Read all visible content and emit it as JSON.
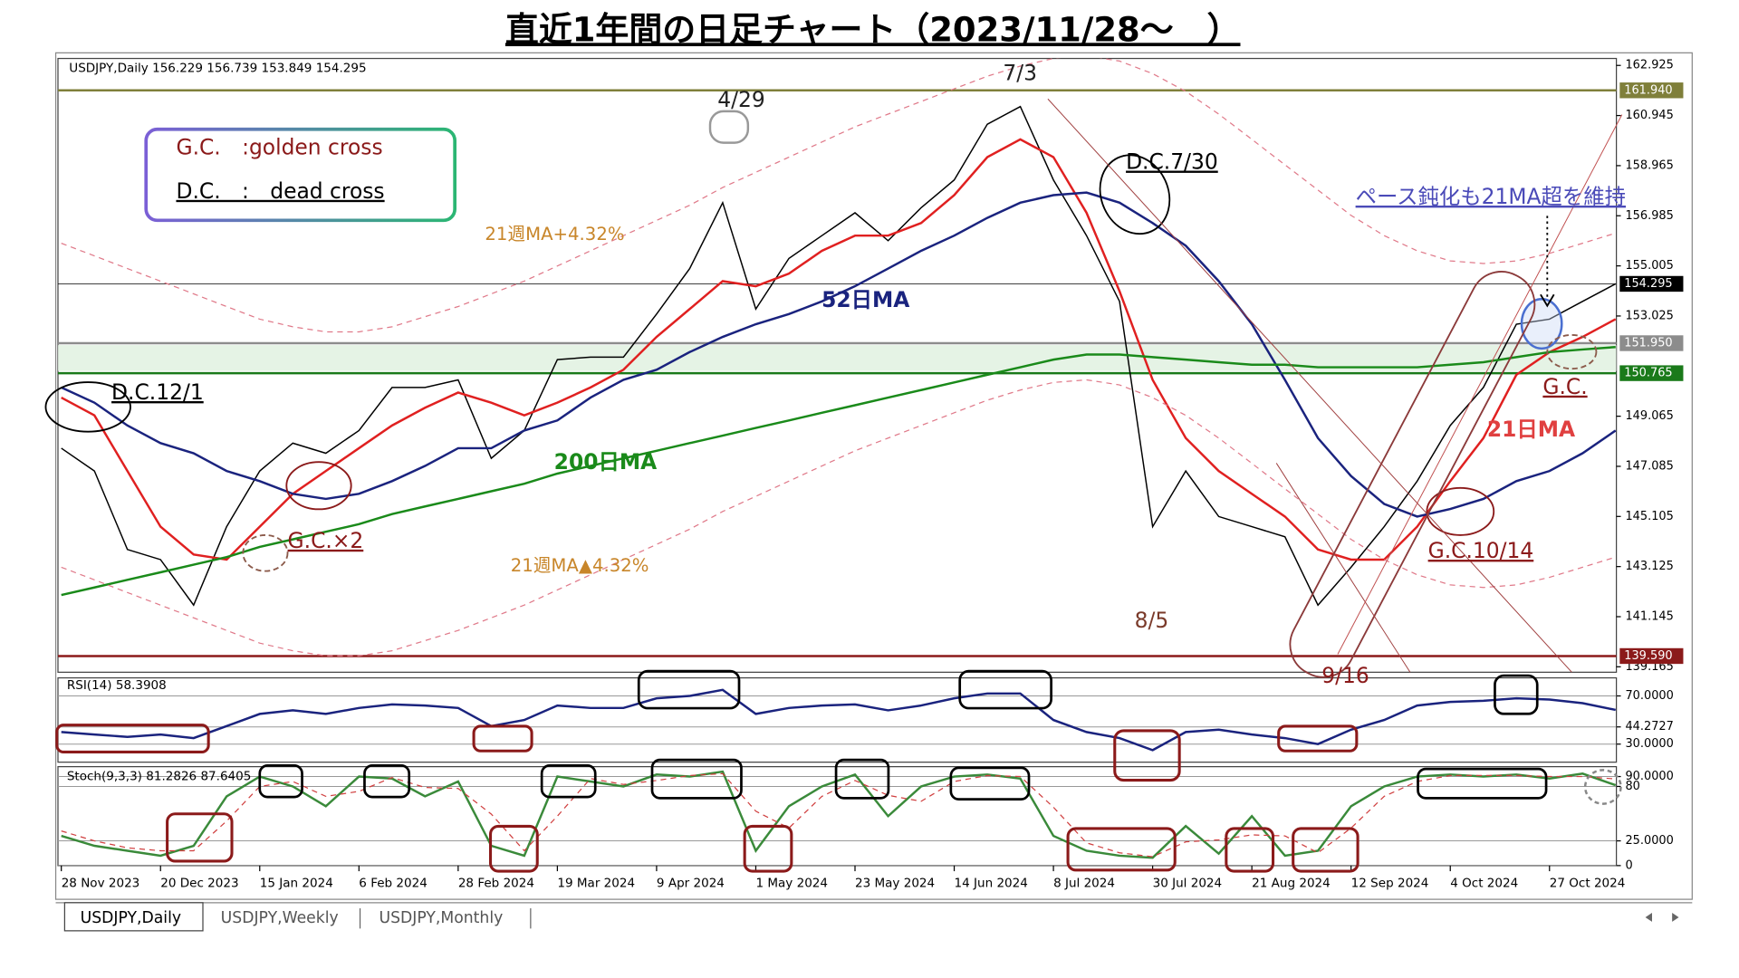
{
  "title": "直近1年間の日足チャート（2023/11/28～　）",
  "legend_box": [
    "G.C.　:golden cross",
    "D.C.　:　dead cross"
  ],
  "tabs": [
    "USDJPY,Daily",
    "USDJPY,Weekly",
    "USDJPY,Monthly"
  ],
  "chart_data": [
    {
      "type": "line",
      "header": "USDJPY,Daily  156.229 156.739 153.849 154.295",
      "categories": [
        "28 Nov 2023",
        null,
        null,
        "20 Dec 2023",
        null,
        null,
        "15 Jan 2024",
        null,
        null,
        "6 Feb 2024",
        null,
        null,
        "28 Feb 2024",
        null,
        null,
        "19 Mar 2024",
        null,
        null,
        "9 Apr 2024",
        null,
        null,
        "1 May 2024",
        null,
        null,
        "23 May 2024",
        null,
        null,
        "14 Jun 2024",
        null,
        null,
        "8 Jul 2024",
        null,
        null,
        "30 Jul 2024",
        null,
        null,
        "21 Aug 2024",
        null,
        null,
        "12 Sep 2024",
        null,
        null,
        "4 Oct 2024",
        null,
        null,
        "27 Oct 2024",
        null,
        null
      ],
      "ylim": [
        138.95,
        163.2
      ],
      "yticks": [
        139.165,
        141.145,
        143.125,
        145.105,
        147.085,
        149.065,
        153.025,
        155.005,
        156.985,
        158.965,
        160.945,
        162.925
      ],
      "grid": false,
      "hlines": [
        {
          "value": 161.94,
          "label": "161.940",
          "color": "#7f7f3a"
        },
        {
          "value": 154.295,
          "color": "#000000"
        },
        {
          "value": 151.95,
          "label": "151.950",
          "color": "#8c8c8c"
        },
        {
          "value": 150.765,
          "color": "#1a7a1a"
        },
        {
          "value": 139.59,
          "label": "139.590",
          "color": "#8b1a1a"
        }
      ],
      "series": [
        {
          "color": "#000000",
          "values": [
            147.8,
            146.9,
            143.8,
            143.4,
            141.6,
            144.7,
            146.9,
            148.0,
            147.6,
            148.5,
            150.2,
            150.2,
            150.5,
            147.4,
            148.5,
            151.3,
            151.4,
            151.4,
            153.1,
            154.9,
            157.5,
            153.3,
            155.3,
            156.2,
            157.1,
            156.0,
            157.3,
            158.4,
            160.6,
            161.3,
            158.4,
            156.2,
            153.6,
            144.7,
            146.9,
            145.1,
            144.7,
            144.3,
            141.6,
            143.1,
            144.7,
            146.5,
            148.7,
            150.2,
            152.7,
            152.9,
            153.6,
            154.295
          ]
        },
        {
          "name": "21日MA",
          "color": "#e02020",
          "values": [
            149.8,
            149.1,
            146.9,
            144.7,
            143.6,
            143.4,
            144.7,
            146.0,
            146.9,
            147.8,
            148.7,
            149.4,
            150.0,
            149.6,
            149.1,
            149.6,
            150.2,
            150.9,
            152.2,
            153.3,
            154.4,
            154.2,
            154.7,
            155.6,
            156.2,
            156.2,
            156.7,
            157.8,
            159.3,
            160.0,
            159.3,
            157.1,
            154.0,
            150.5,
            148.2,
            146.9,
            146.0,
            145.1,
            143.8,
            143.4,
            143.4,
            144.7,
            146.5,
            148.2,
            150.7,
            151.6,
            152.2,
            152.9
          ]
        },
        {
          "name": "52日MA",
          "color": "#1a237e",
          "values": [
            150.2,
            149.6,
            148.7,
            148.0,
            147.6,
            146.9,
            146.5,
            146.0,
            145.8,
            146.0,
            146.5,
            147.1,
            147.8,
            147.8,
            148.5,
            148.9,
            149.8,
            150.5,
            150.9,
            151.6,
            152.2,
            152.7,
            153.1,
            153.6,
            154.2,
            154.9,
            155.6,
            156.2,
            156.9,
            157.5,
            157.8,
            157.9,
            157.5,
            156.7,
            155.8,
            154.4,
            152.7,
            150.5,
            148.2,
            146.7,
            145.6,
            145.1,
            145.4,
            145.8,
            146.5,
            146.9,
            147.6,
            148.5
          ]
        },
        {
          "name": "200日MA",
          "color": "#1a8a1a",
          "values": [
            142.0,
            142.3,
            142.6,
            142.9,
            143.2,
            143.5,
            143.9,
            144.2,
            144.5,
            144.8,
            145.2,
            145.5,
            145.8,
            146.1,
            146.4,
            146.8,
            147.1,
            147.4,
            147.7,
            148.0,
            148.3,
            148.6,
            148.9,
            149.2,
            149.5,
            149.8,
            150.1,
            150.4,
            150.7,
            151.0,
            151.3,
            151.5,
            151.5,
            151.4,
            151.3,
            151.2,
            151.1,
            151.1,
            151.0,
            151.0,
            151.0,
            151.0,
            151.1,
            151.2,
            151.4,
            151.6,
            151.7,
            151.8
          ]
        },
        {
          "name": "21週MA+4.32%",
          "color": "#e07a8a",
          "dash": true,
          "values": [
            155.9,
            155.4,
            154.9,
            154.4,
            153.9,
            153.4,
            152.9,
            152.6,
            152.4,
            152.4,
            152.6,
            153.0,
            153.4,
            153.9,
            154.4,
            155.0,
            155.6,
            156.2,
            156.8,
            157.4,
            158.1,
            158.7,
            159.3,
            159.9,
            160.5,
            161.0,
            161.5,
            162.0,
            162.5,
            162.9,
            163.2,
            163.3,
            163.1,
            162.6,
            161.9,
            161.0,
            160.0,
            159.0,
            158.0,
            157.0,
            156.2,
            155.6,
            155.2,
            155.1,
            155.2,
            155.5,
            155.9,
            156.3
          ]
        },
        {
          "name": "21週MA▲4.32%",
          "color": "#e07a8a",
          "dash": true,
          "values": [
            143.1,
            142.6,
            142.1,
            141.6,
            141.1,
            140.6,
            140.1,
            139.8,
            139.6,
            139.6,
            139.8,
            140.2,
            140.6,
            141.1,
            141.6,
            142.2,
            142.8,
            143.4,
            144.0,
            144.6,
            145.3,
            145.9,
            146.5,
            147.1,
            147.7,
            148.2,
            148.7,
            149.2,
            149.7,
            150.1,
            150.4,
            150.5,
            150.3,
            149.8,
            149.1,
            148.2,
            147.2,
            146.2,
            145.2,
            144.2,
            143.4,
            142.8,
            142.4,
            142.3,
            142.4,
            142.7,
            143.1,
            143.5
          ]
        }
      ],
      "annotations": [
        "4/29",
        "7/3",
        "D.C.7/30",
        "ペース鈍化も21MA超を維持",
        "D.C.12/1",
        "G.C.×2",
        "8/5",
        "9/16",
        "G.C.",
        "G.C.10/14"
      ]
    },
    {
      "type": "line",
      "header": "RSI(14) 58.3908",
      "ylim": [
        15,
        85
      ],
      "yticks": [
        {
          "value": 70,
          "label": "70.0000"
        },
        44.2727,
        {
          "value": 30,
          "label": "30.0000"
        }
      ],
      "grid": true,
      "series": [
        {
          "color": "#1a237e",
          "values": [
            40,
            38,
            36,
            38,
            35,
            45,
            55,
            58,
            55,
            60,
            63,
            62,
            60,
            45,
            50,
            62,
            60,
            60,
            68,
            70,
            75,
            55,
            60,
            62,
            63,
            58,
            62,
            68,
            72,
            72,
            50,
            40,
            35,
            25,
            40,
            42,
            38,
            35,
            30,
            42,
            50,
            62,
            65,
            66,
            68,
            67,
            64,
            58.3908
          ]
        }
      ]
    },
    {
      "type": "line",
      "header": "Stoch(9,3,3) 81.2826 87.6405",
      "ylim": [
        0,
        100
      ],
      "yticks": [
        {
          "value": 90,
          "label": "90.0000"
        },
        80,
        {
          "value": 25,
          "label": "25.0000"
        },
        0
      ],
      "grid": true,
      "series": [
        {
          "color": "#3a8a3a",
          "values": [
            30,
            20,
            15,
            10,
            20,
            70,
            90,
            80,
            60,
            90,
            88,
            70,
            85,
            20,
            10,
            90,
            85,
            80,
            92,
            90,
            95,
            15,
            60,
            80,
            92,
            50,
            80,
            90,
            92,
            88,
            30,
            15,
            10,
            8,
            40,
            12,
            50,
            10,
            15,
            60,
            80,
            90,
            92,
            90,
            92,
            88,
            93,
            81.2826
          ]
        },
        {
          "color": "#d04040",
          "dash": true,
          "values": [
            35,
            25,
            18,
            15,
            15,
            45,
            80,
            85,
            70,
            75,
            89,
            79,
            78,
            52,
            15,
            50,
            88,
            82,
            86,
            91,
            93,
            55,
            38,
            70,
            86,
            71,
            65,
            85,
            91,
            90,
            59,
            23,
            13,
            9,
            24,
            26,
            31,
            30,
            13,
            38,
            70,
            85,
            91,
            91,
            91,
            90,
            90,
            87.6405
          ]
        }
      ]
    }
  ]
}
